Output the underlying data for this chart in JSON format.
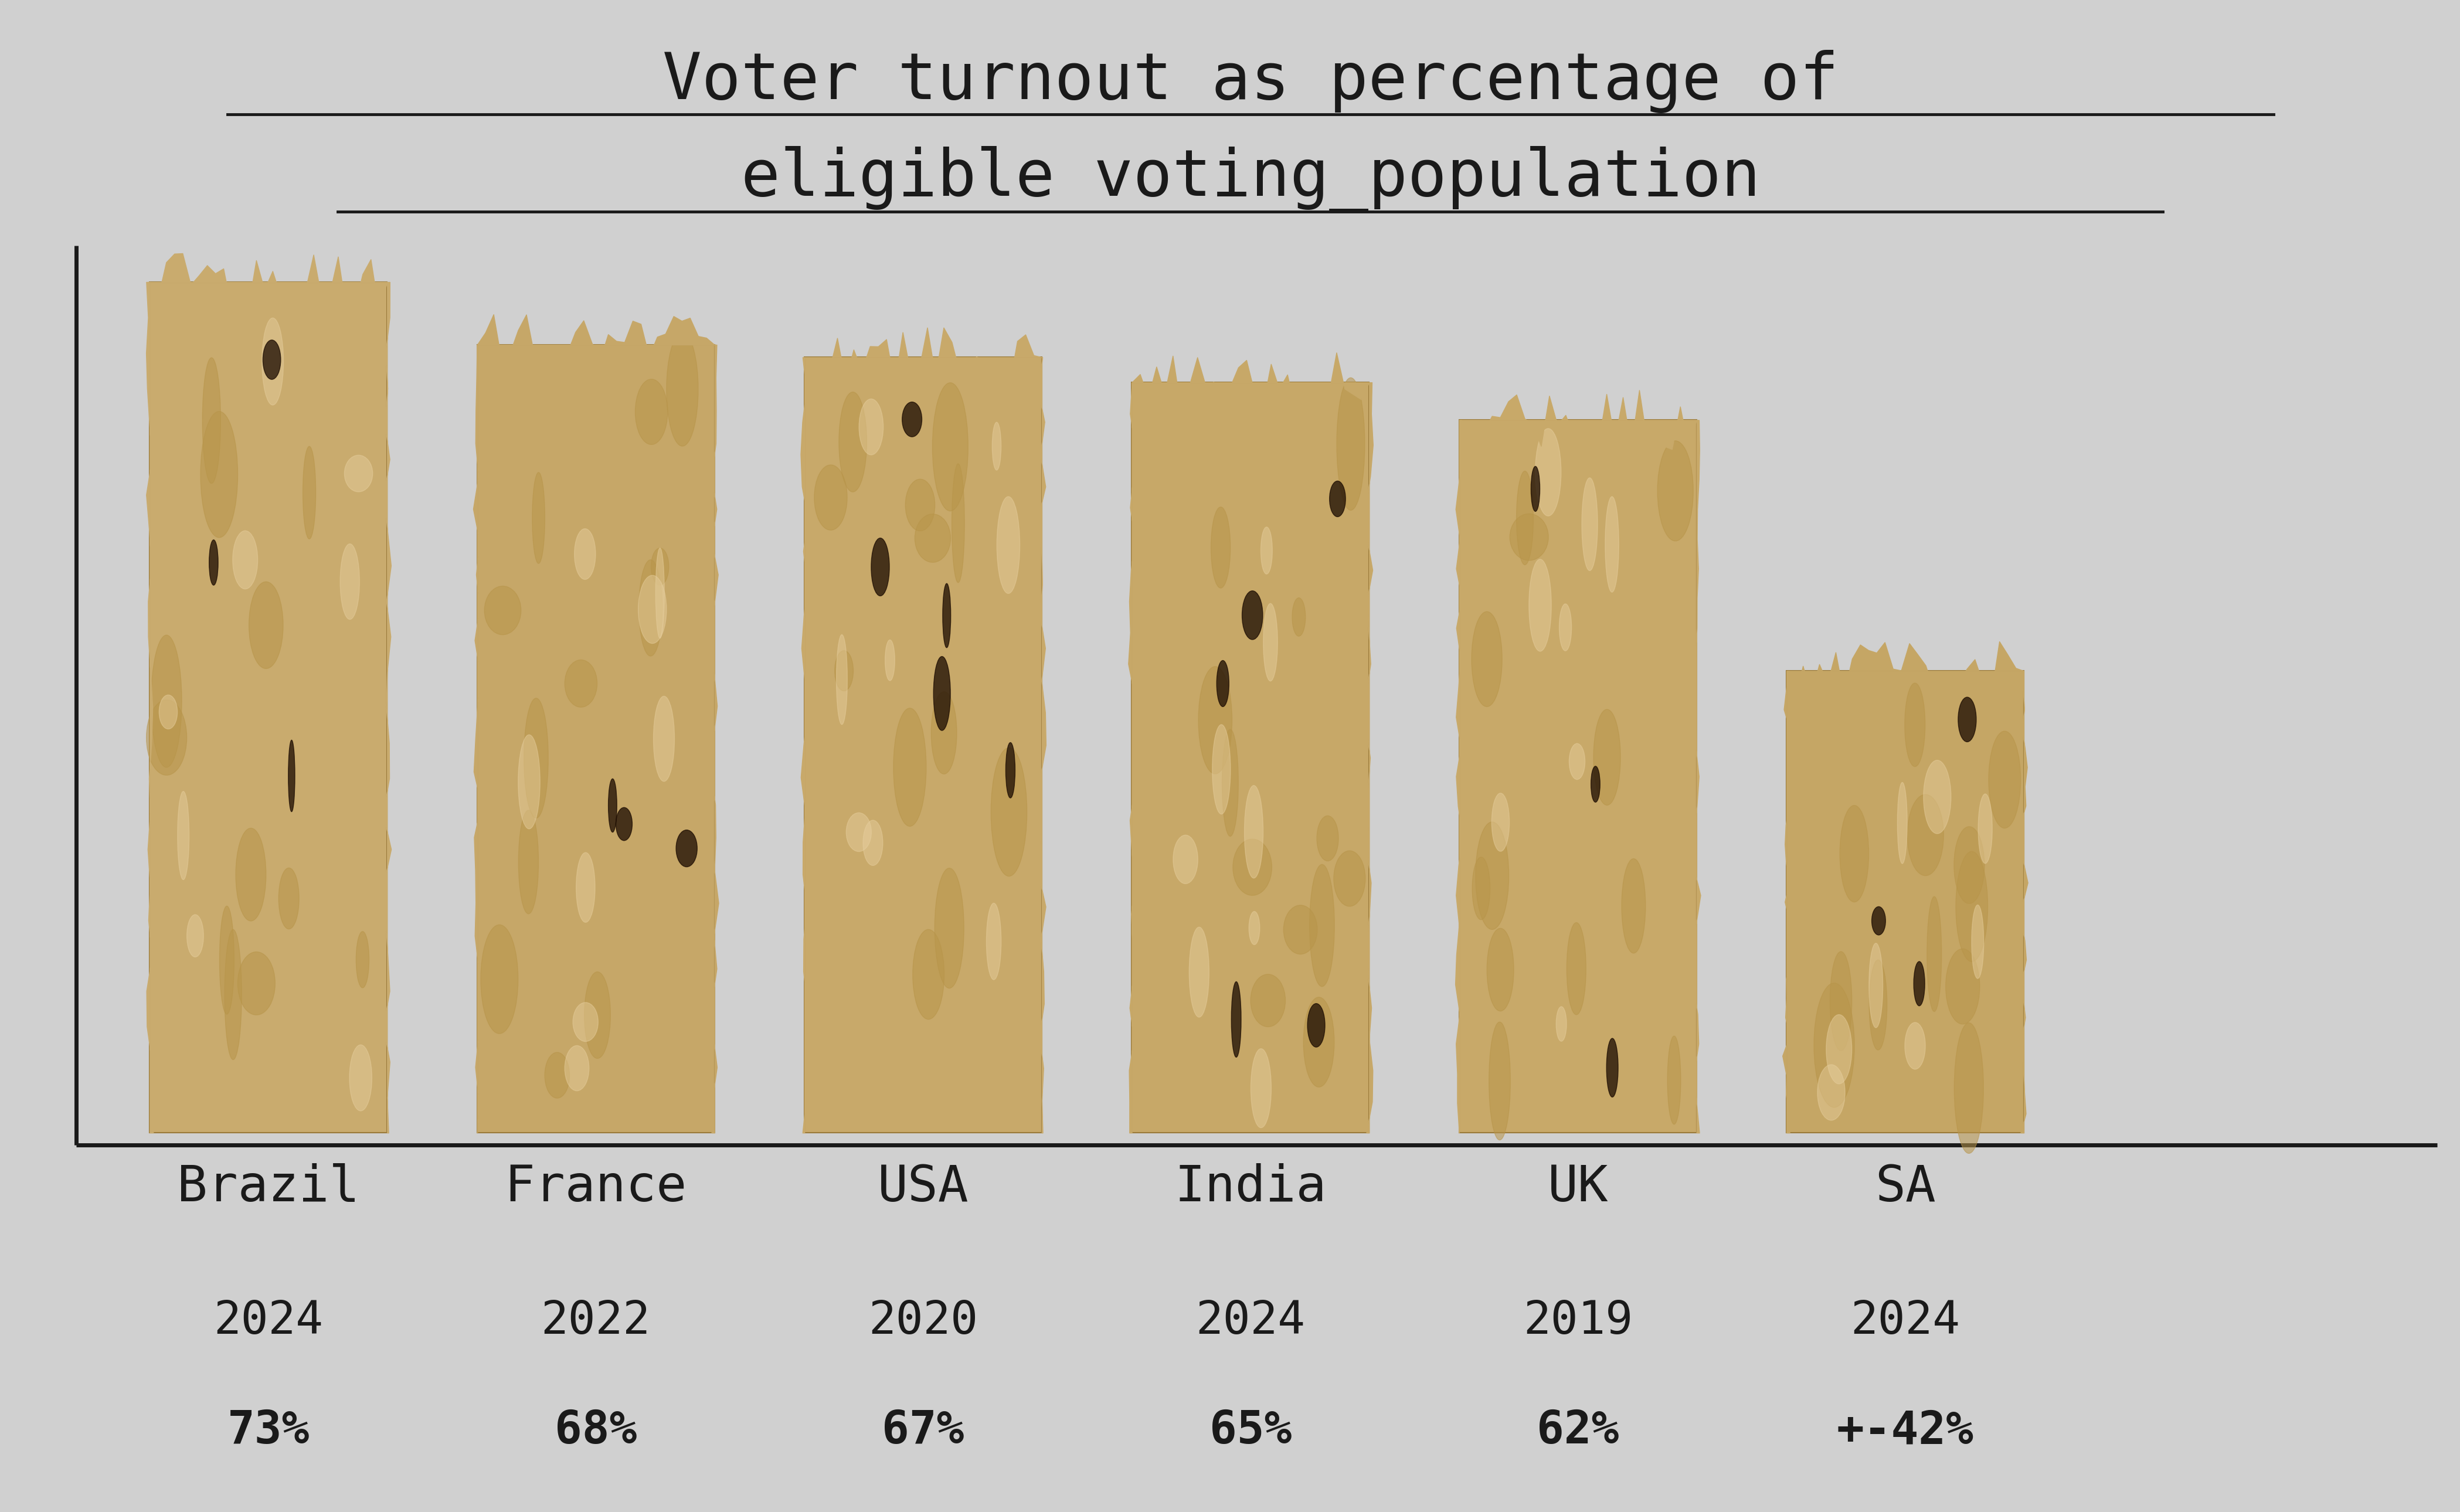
{
  "title_line1": "Voter turnout as percentage of",
  "title_line2": "eligible voting_population",
  "background_color": "#d0d0d0",
  "countries": [
    "Brazil",
    "France",
    "USA",
    "India",
    "UK",
    "SA"
  ],
  "years": [
    "2024",
    "2022",
    "2020",
    "2024",
    "2019",
    "2024"
  ],
  "percentages": [
    "73%",
    "68%",
    "67%",
    "65%",
    "62%",
    "+-42%"
  ],
  "values": [
    73,
    68,
    67,
    65,
    62,
    42
  ],
  "axis_color": "#1a1a1a",
  "text_color": "#1a1a1a",
  "title_fontsize": 80,
  "label_fontsize": 62,
  "year_fontsize": 56,
  "pct_fontsize": 56,
  "figwidth": 41.96,
  "figheight": 25.79
}
